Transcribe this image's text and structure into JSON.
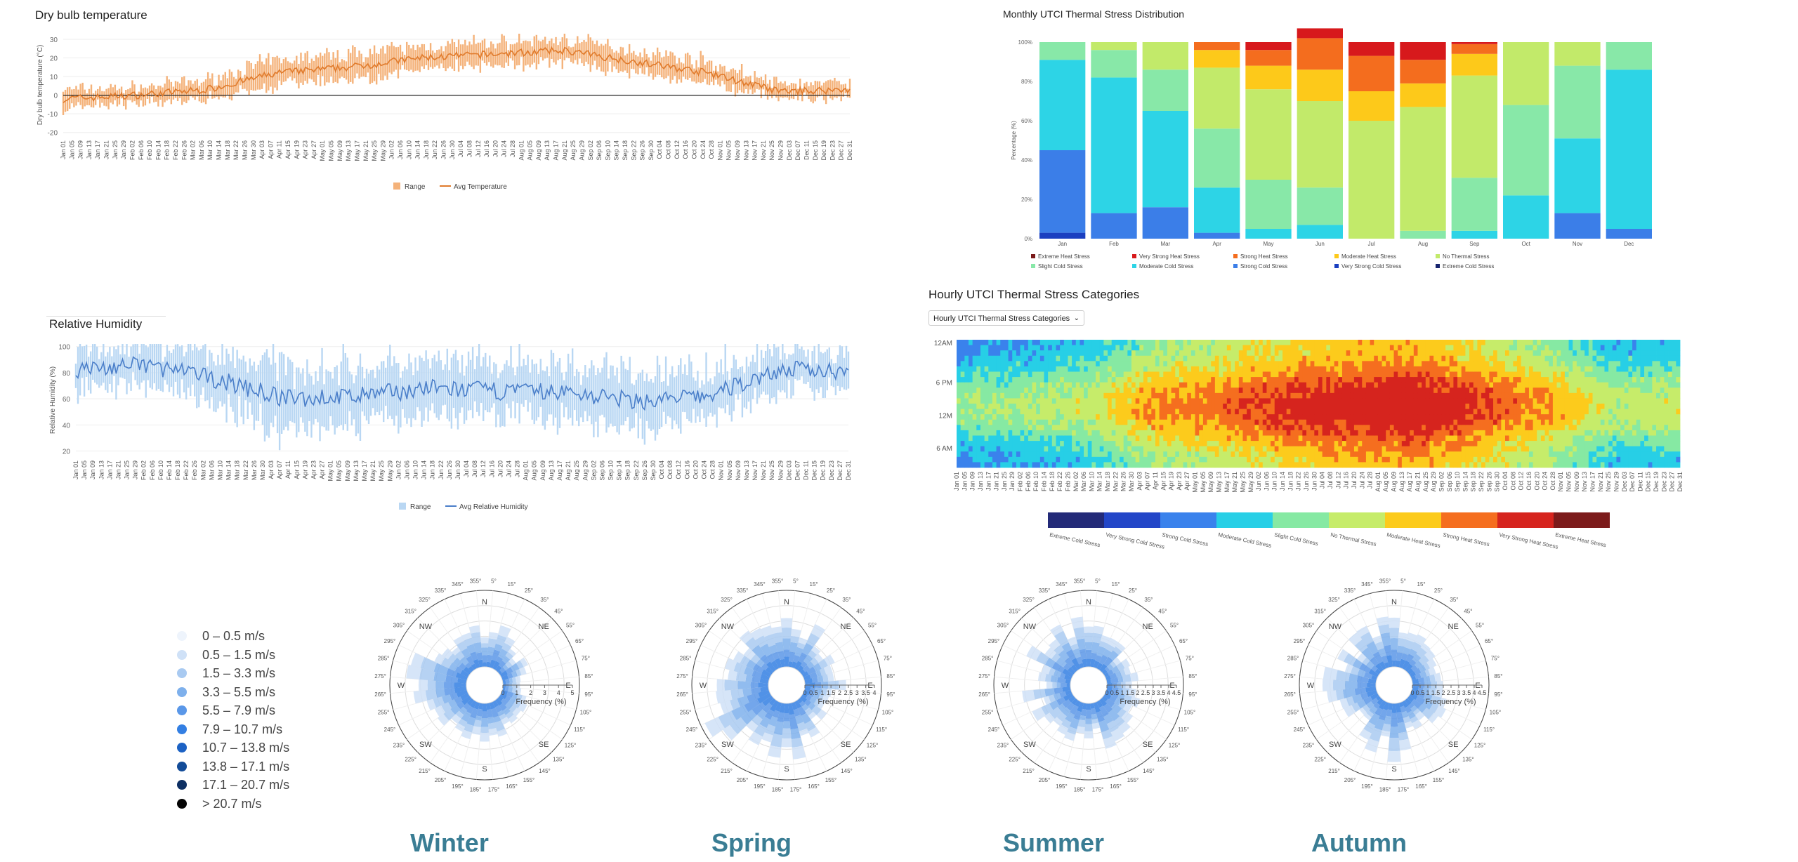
{
  "temperature": {
    "title": "Dry bulb temperature",
    "ylabel": "Dry bulb temperature (°C)",
    "legend_range": "Range",
    "legend_avg": "Avg Temperature",
    "range_color": "#f4b27a",
    "avg_color": "#e07a2b"
  },
  "humidity": {
    "title": "Relative Humidity",
    "ylabel": "Relative Humidity (%)",
    "legend_range": "Range",
    "legend_avg": "Avg Relative Humidity",
    "range_color": "#b9d7f3",
    "avg_color": "#4a7ec9"
  },
  "date_ticks": [
    "Jan 01",
    "Jan 05",
    "Jan 09",
    "Jan 13",
    "Jan 17",
    "Jan 21",
    "Jan 25",
    "Jan 29",
    "Feb 02",
    "Feb 06",
    "Feb 10",
    "Feb 14",
    "Feb 18",
    "Feb 22",
    "Feb 26",
    "Mar 02",
    "Mar 06",
    "Mar 10",
    "Mar 14",
    "Mar 18",
    "Mar 22",
    "Mar 26",
    "Mar 30",
    "Apr 03",
    "Apr 07",
    "Apr 11",
    "Apr 15",
    "Apr 19",
    "Apr 23",
    "Apr 27",
    "May 01",
    "May 05",
    "May 09",
    "May 13",
    "May 17",
    "May 21",
    "May 25",
    "May 29",
    "Jun 02",
    "Jun 06",
    "Jun 10",
    "Jun 14",
    "Jun 18",
    "Jun 22",
    "Jun 26",
    "Jun 30",
    "Jul 04",
    "Jul 08",
    "Jul 12",
    "Jul 16",
    "Jul 20",
    "Jul 24",
    "Jul 28",
    "Aug 01",
    "Aug 05",
    "Aug 09",
    "Aug 13",
    "Aug 17",
    "Aug 21",
    "Aug 25",
    "Aug 29",
    "Sep 02",
    "Sep 06",
    "Sep 10",
    "Sep 14",
    "Sep 18",
    "Sep 22",
    "Sep 26",
    "Sep 30",
    "Oct 04",
    "Oct 08",
    "Oct 12",
    "Oct 16",
    "Oct 20",
    "Oct 24",
    "Oct 28",
    "Nov 01",
    "Nov 05",
    "Nov 09",
    "Nov 13",
    "Nov 17",
    "Nov 21",
    "Nov 25",
    "Nov 29",
    "Dec 03",
    "Dec 07",
    "Dec 11",
    "Dec 15",
    "Dec 19",
    "Dec 23",
    "Dec 27",
    "Dec 31"
  ],
  "chart_data": [
    {
      "type": "area",
      "title": "Dry bulb temperature",
      "xlabel": "",
      "ylabel": "Dry bulb temperature (°C)",
      "ylim": [
        -22,
        33
      ],
      "yticks": [
        -20,
        -10,
        0,
        10,
        20,
        30
      ],
      "series": [
        {
          "name": "Avg Temperature",
          "monthly_values": [
            -2,
            0,
            3,
            12,
            15,
            20,
            22,
            24,
            18,
            12,
            2,
            3
          ]
        },
        {
          "name": "Range",
          "monthly_spread": [
            5,
            4,
            5,
            7,
            7,
            6,
            6,
            6,
            6,
            6,
            4,
            4
          ]
        }
      ]
    },
    {
      "type": "area",
      "title": "Relative Humidity",
      "xlabel": "",
      "ylabel": "Relative Humidity (%)",
      "ylim": [
        16,
        102
      ],
      "yticks": [
        20,
        40,
        60,
        80,
        100
      ],
      "series": [
        {
          "name": "Avg Relative Humidity",
          "monthly_values": [
            82,
            86,
            75,
            60,
            62,
            68,
            66,
            65,
            58,
            62,
            82,
            82
          ]
        },
        {
          "name": "Range",
          "monthly_spread": [
            15,
            15,
            20,
            25,
            22,
            20,
            20,
            20,
            20,
            20,
            15,
            15
          ]
        }
      ]
    },
    {
      "type": "bar",
      "stacked": true,
      "title": "Monthly UTCI Thermal Stress Distribution",
      "ylabel": "Percentage (%)",
      "yticks": [
        "0%",
        "20%",
        "40%",
        "60%",
        "80%",
        "100%"
      ],
      "categories": [
        "Jan",
        "Feb",
        "Mar",
        "Apr",
        "May",
        "Jun",
        "Jul",
        "Aug",
        "Sep",
        "Oct",
        "Nov",
        "Dec"
      ],
      "series": [
        {
          "name": "Very Strong Cold Stress",
          "values": [
            3,
            0,
            0,
            0,
            0,
            0,
            0,
            0,
            0,
            0,
            0,
            0
          ]
        },
        {
          "name": "Strong Cold Stress",
          "values": [
            42,
            13,
            16,
            3,
            0,
            0,
            0,
            0,
            0,
            0,
            13,
            5
          ]
        },
        {
          "name": "Moderate Cold Stress",
          "values": [
            46,
            69,
            49,
            23,
            5,
            7,
            0,
            0,
            4,
            22,
            38,
            81
          ]
        },
        {
          "name": "Slight Cold Stress",
          "values": [
            9,
            14,
            21,
            30,
            25,
            19,
            0,
            4,
            27,
            46,
            37,
            14
          ]
        },
        {
          "name": "No Thermal Stress",
          "values": [
            0,
            4,
            14,
            31,
            46,
            44,
            60,
            63,
            52,
            32,
            12,
            0
          ]
        },
        {
          "name": "Moderate Heat Stress",
          "values": [
            0,
            0,
            0,
            9,
            12,
            16,
            15,
            12,
            11,
            0,
            0,
            0
          ]
        },
        {
          "name": "Strong Heat Stress",
          "values": [
            0,
            0,
            0,
            4,
            8,
            16,
            18,
            12,
            5,
            0,
            0,
            0
          ]
        },
        {
          "name": "Very Strong Heat Stress",
          "values": [
            0,
            0,
            0,
            0,
            4,
            5,
            7,
            9,
            1,
            0,
            0,
            0
          ]
        }
      ]
    },
    {
      "type": "heatmap",
      "title": "Hourly UTCI Thermal Stress Categories",
      "y_ticks": [
        "12AM",
        "6 PM",
        "12M",
        "6 AM"
      ],
      "colorbar": [
        "Extreme Cold Stress",
        "Very Strong Cold Stress",
        "Strong Cold Stress",
        "Moderate Cold Stress",
        "Slight Cold Stress",
        "No Thermal Stress",
        "Moderate Heat Stress",
        "Strong Heat Stress",
        "Very Strong Heat Stress",
        "Extreme Heat Stress"
      ]
    }
  ],
  "utci": {
    "title": "Monthly UTCI Thermal Stress Distribution",
    "ylabel": "Percentage (%)",
    "legend": [
      {
        "label": "Extreme Heat Stress",
        "color": "#7a1a1a"
      },
      {
        "label": "Very Strong Heat Stress",
        "color": "#d7191c"
      },
      {
        "label": "Strong Heat Stress",
        "color": "#f46d1e"
      },
      {
        "label": "Moderate Heat Stress",
        "color": "#fdc91a"
      },
      {
        "label": "No Thermal Stress",
        "color": "#c2ea6a"
      },
      {
        "label": "Slight Cold Stress",
        "color": "#88e8a8"
      },
      {
        "label": "Moderate Cold Stress",
        "color": "#2dd4e6"
      },
      {
        "label": "Strong Cold Stress",
        "color": "#3b7ee8"
      },
      {
        "label": "Very Strong Cold Stress",
        "color": "#1a3fc0"
      },
      {
        "label": "Extreme Cold Stress",
        "color": "#17246e"
      }
    ]
  },
  "hourly": {
    "title": "Hourly UTCI Thermal Stress Categories",
    "dropdown": "Hourly UTCI Thermal Stress Categories",
    "colorbar": [
      {
        "label": "Extreme Cold Stress",
        "color": "#232a78"
      },
      {
        "label": "Very Strong Cold Stress",
        "color": "#2346c8"
      },
      {
        "label": "Strong Cold Stress",
        "color": "#3a82ec"
      },
      {
        "label": "Moderate Cold Stress",
        "color": "#27cfe6"
      },
      {
        "label": "Slight Cold Stress",
        "color": "#86e9a3"
      },
      {
        "label": "No Thermal Stress",
        "color": "#c6ec6a"
      },
      {
        "label": "Moderate Heat Stress",
        "color": "#fccb1c"
      },
      {
        "label": "Strong Heat Stress",
        "color": "#f56e1f"
      },
      {
        "label": "Very Strong Heat Stress",
        "color": "#d6241e"
      },
      {
        "label": "Extreme Heat Stress",
        "color": "#7c1b1b"
      }
    ]
  },
  "wind": {
    "legend": [
      {
        "label": "0 – 0.5 m/s",
        "color": "#eef4fc"
      },
      {
        "label": "0.5 – 1.5 m/s",
        "color": "#cfe1f7"
      },
      {
        "label": "1.5 – 3.3 m/s",
        "color": "#a9caf1"
      },
      {
        "label": "3.3 – 5.5 m/s",
        "color": "#7eb0ec"
      },
      {
        "label": "5.5 – 7.9 m/s",
        "color": "#5a97e8"
      },
      {
        "label": "7.9 – 10.7 m/s",
        "color": "#337fe3"
      },
      {
        "label": "10.7 – 13.8 m/s",
        "color": "#1c62c4"
      },
      {
        "label": "13.8 – 17.1 m/s",
        "color": "#124b98"
      },
      {
        "label": "17.1 – 20.7 m/s",
        "color": "#0d2f63"
      },
      {
        "label": "> 20.7 m/s",
        "color": "#050505"
      }
    ],
    "compass": [
      "N",
      "NE",
      "E",
      "SE",
      "S",
      "SW",
      "W",
      "NW"
    ],
    "freq_label": "Frequency (%)",
    "seasons": [
      {
        "name": "Winter",
        "ticks": [
          "0",
          "1",
          "2",
          "3",
          "4",
          "5"
        ]
      },
      {
        "name": "Spring",
        "ticks": [
          "0",
          "0.5",
          "1",
          "1.5",
          "2",
          "2.5",
          "3",
          "3.5",
          "4"
        ]
      },
      {
        "name": "Summer",
        "ticks": [
          "0",
          "0.5",
          "1",
          "1.5",
          "2",
          "2.5",
          "3",
          "3.5",
          "4",
          "4.5"
        ]
      },
      {
        "name": "Autumn",
        "ticks": [
          "0",
          "0.5",
          "1",
          "1.5",
          "2",
          "2.5",
          "3",
          "3.5",
          "4",
          "4.5"
        ]
      }
    ]
  }
}
